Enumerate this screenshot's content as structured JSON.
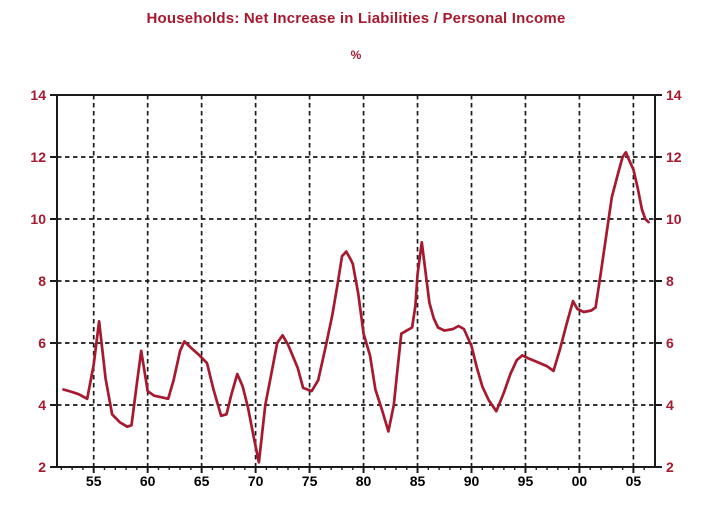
{
  "page": {
    "background": "#ffffff"
  },
  "chart_data": {
    "type": "line",
    "title": "Households: Net Increase in Liabilities / Personal Income",
    "unit_label": "%",
    "colors": {
      "line": "#A6192E",
      "title": "#A6192E",
      "y_axis_text": "#A6192E",
      "x_axis_text": "#000000",
      "grid": "#1a1a1a",
      "frame": "#1a1a1a"
    },
    "legend": "none",
    "grid": true,
    "x_range": [
      1951.6,
      2007.0
    ],
    "y_range": [
      2,
      14
    ],
    "y_ticks": [
      2,
      4,
      6,
      8,
      10,
      12,
      14
    ],
    "y_grid_values": [
      4,
      6,
      8,
      10,
      12
    ],
    "x_ticks": [
      {
        "year": 1955,
        "label": "55"
      },
      {
        "year": 1960,
        "label": "60"
      },
      {
        "year": 1965,
        "label": "65"
      },
      {
        "year": 1970,
        "label": "70"
      },
      {
        "year": 1975,
        "label": "75"
      },
      {
        "year": 1980,
        "label": "80"
      },
      {
        "year": 1985,
        "label": "85"
      },
      {
        "year": 1990,
        "label": "90"
      },
      {
        "year": 1995,
        "label": "95"
      },
      {
        "year": 2000,
        "label": "00"
      },
      {
        "year": 2005,
        "label": "05"
      }
    ],
    "x_minor_tick_years": [
      1952,
      1953,
      1954,
      1955,
      1956,
      1957,
      1958,
      1959,
      1960,
      1961,
      1962,
      1963,
      1964,
      1965,
      1966,
      1967,
      1968,
      1969,
      1970,
      1971,
      1972,
      1973,
      1974,
      1975,
      1976,
      1977,
      1978,
      1979,
      1980,
      1981,
      1982,
      1983,
      1984,
      1985,
      1986,
      1987,
      1988,
      1989,
      1990,
      1991,
      1992,
      1993,
      1994,
      1995,
      1996,
      1997,
      1998,
      1999,
      2000,
      2001,
      2002,
      2003,
      2004,
      2005,
      2006
    ],
    "series": [
      {
        "name": "Households: net increase in liabilities / personal income (%)",
        "points": [
          [
            1952.2,
            4.5
          ],
          [
            1953.0,
            4.42
          ],
          [
            1953.6,
            4.35
          ],
          [
            1954.4,
            4.2
          ],
          [
            1955.0,
            5.3
          ],
          [
            1955.5,
            6.7
          ],
          [
            1956.1,
            4.85
          ],
          [
            1956.7,
            3.7
          ],
          [
            1957.4,
            3.45
          ],
          [
            1958.1,
            3.3
          ],
          [
            1958.5,
            3.35
          ],
          [
            1959.0,
            4.7
          ],
          [
            1959.4,
            5.75
          ],
          [
            1960.0,
            4.45
          ],
          [
            1960.6,
            4.3
          ],
          [
            1961.3,
            4.25
          ],
          [
            1961.9,
            4.2
          ],
          [
            1962.4,
            4.8
          ],
          [
            1963.0,
            5.75
          ],
          [
            1963.4,
            6.05
          ],
          [
            1964.0,
            5.85
          ],
          [
            1964.8,
            5.6
          ],
          [
            1965.5,
            5.35
          ],
          [
            1966.1,
            4.5
          ],
          [
            1966.8,
            3.65
          ],
          [
            1967.3,
            3.7
          ],
          [
            1967.8,
            4.4
          ],
          [
            1968.3,
            5.0
          ],
          [
            1968.8,
            4.6
          ],
          [
            1969.3,
            3.9
          ],
          [
            1969.8,
            3.0
          ],
          [
            1970.3,
            2.15
          ],
          [
            1970.9,
            4.0
          ],
          [
            1971.4,
            4.9
          ],
          [
            1972.0,
            6.0
          ],
          [
            1972.5,
            6.25
          ],
          [
            1973.0,
            5.95
          ],
          [
            1973.9,
            5.2
          ],
          [
            1974.4,
            4.55
          ],
          [
            1975.2,
            4.45
          ],
          [
            1975.8,
            4.8
          ],
          [
            1976.5,
            5.9
          ],
          [
            1977.1,
            6.9
          ],
          [
            1977.6,
            7.9
          ],
          [
            1978.0,
            8.8
          ],
          [
            1978.4,
            8.95
          ],
          [
            1978.8,
            8.7
          ],
          [
            1979.0,
            8.55
          ],
          [
            1979.5,
            7.6
          ],
          [
            1980.0,
            6.3
          ],
          [
            1980.6,
            5.6
          ],
          [
            1981.1,
            4.5
          ],
          [
            1981.7,
            3.85
          ],
          [
            1982.3,
            3.15
          ],
          [
            1982.8,
            4.0
          ],
          [
            1983.1,
            5.0
          ],
          [
            1983.5,
            6.3
          ],
          [
            1984.0,
            6.4
          ],
          [
            1984.5,
            6.5
          ],
          [
            1984.8,
            7.2
          ],
          [
            1985.0,
            8.2
          ],
          [
            1985.4,
            9.25
          ],
          [
            1985.7,
            8.4
          ],
          [
            1986.1,
            7.3
          ],
          [
            1986.5,
            6.8
          ],
          [
            1986.9,
            6.5
          ],
          [
            1987.5,
            6.4
          ],
          [
            1988.3,
            6.45
          ],
          [
            1988.8,
            6.55
          ],
          [
            1989.3,
            6.45
          ],
          [
            1990.0,
            5.9
          ],
          [
            1990.5,
            5.2
          ],
          [
            1991.0,
            4.6
          ],
          [
            1991.6,
            4.15
          ],
          [
            1992.3,
            3.8
          ],
          [
            1993.0,
            4.4
          ],
          [
            1993.6,
            5.0
          ],
          [
            1994.2,
            5.45
          ],
          [
            1994.7,
            5.6
          ],
          [
            1995.3,
            5.5
          ],
          [
            1996.0,
            5.4
          ],
          [
            1997.0,
            5.25
          ],
          [
            1997.6,
            5.1
          ],
          [
            1998.2,
            5.8
          ],
          [
            1998.8,
            6.6
          ],
          [
            1999.4,
            7.35
          ],
          [
            1999.8,
            7.1
          ],
          [
            2000.4,
            7.0
          ],
          [
            2001.1,
            7.05
          ],
          [
            2001.5,
            7.15
          ],
          [
            2002.0,
            8.3
          ],
          [
            2002.5,
            9.5
          ],
          [
            2003.0,
            10.7
          ],
          [
            2003.6,
            11.5
          ],
          [
            2004.0,
            12.0
          ],
          [
            2004.3,
            12.15
          ],
          [
            2004.6,
            11.9
          ],
          [
            2005.0,
            11.6
          ],
          [
            2005.4,
            11.0
          ],
          [
            2005.8,
            10.3
          ],
          [
            2006.1,
            10.0
          ],
          [
            2006.4,
            9.9
          ]
        ]
      }
    ]
  }
}
